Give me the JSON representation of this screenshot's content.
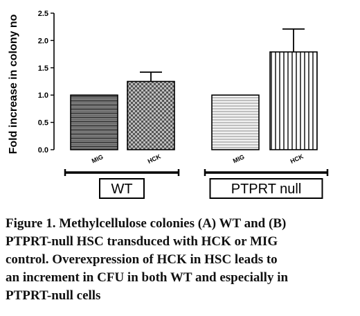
{
  "chart_data": {
    "type": "bar",
    "categories": [
      "MIG",
      "HCK",
      "MIG",
      "HCK"
    ],
    "values": [
      1.0,
      1.25,
      1.0,
      1.79
    ],
    "errors": [
      0.0,
      0.17,
      0.0,
      0.42
    ],
    "ylabel": "Fold increase in colony no",
    "ylim": [
      0,
      2.5
    ],
    "yticks": [
      "0.0",
      "0.5",
      "1.0",
      "1.5",
      "2.0",
      "2.5"
    ],
    "groups": [
      {
        "label": "WT",
        "categories": [
          0,
          1
        ]
      },
      {
        "label": "PTPRT null",
        "categories": [
          2,
          3
        ]
      }
    ],
    "bar_patterns": [
      "horizontal-dark",
      "checkered",
      "horizontal-light",
      "vertical"
    ],
    "colors": {
      "bar_stroke": "#000000",
      "text": "#000000"
    }
  },
  "caption": {
    "lines": [
      "Figure 1. Methylcellulose colonies (A) WT and (B)",
      "PTPRT-null HSC transduced with HCK or MIG",
      "control. Overexpression of HCK in HSC leads to",
      "an increment in CFU in both WT and especially in",
      "PTPRT-null cells"
    ]
  }
}
